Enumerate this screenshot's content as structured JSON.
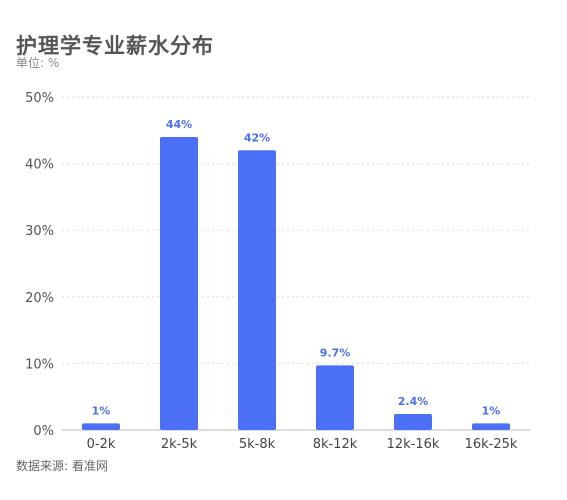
{
  "chart_data": {
    "type": "bar",
    "title": "护理学专业薪水分布",
    "subtitle": "单位: %",
    "source": "数据来源: 看准网",
    "categories": [
      "0-2k",
      "2k-5k",
      "5k-8k",
      "8k-12k",
      "12k-16k",
      "16k-25k"
    ],
    "values": [
      1,
      44,
      42,
      9.7,
      2.4,
      1
    ],
    "data_labels": [
      "1%",
      "44%",
      "42%",
      "9.7%",
      "2.4%",
      "1%"
    ],
    "yticks": [
      "0%",
      "10%",
      "20%",
      "30%",
      "40%",
      "50%"
    ],
    "ylim": [
      0,
      50
    ],
    "grid": true,
    "colors": {
      "bar": "#4b6ff5",
      "label": "#4b6ff5",
      "grid": "#dddddd",
      "axis": "#bbbbbb"
    }
  }
}
